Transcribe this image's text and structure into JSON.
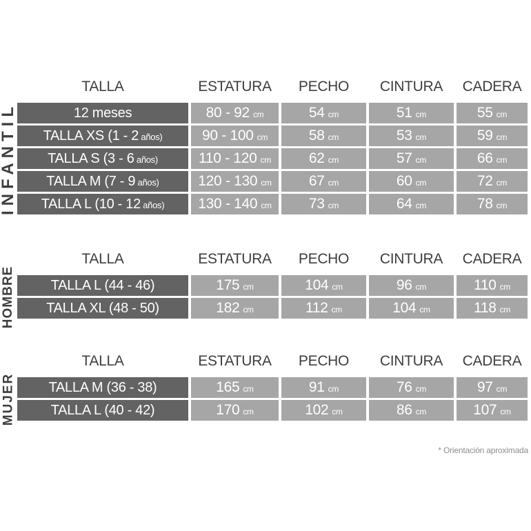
{
  "columns": {
    "talla": "TALLA",
    "estatura": "ESTATURA",
    "pecho": "PECHO",
    "cintura": "CINTURA",
    "cadera": "CADERA"
  },
  "footnote": "* Orientación aproximada",
  "colors": {
    "row_header_cell": "#636363",
    "data_cell": "#a6a6a6",
    "header_text": "#3e3e3e",
    "cell_text": "#ffffff",
    "footnote_text": "#8e8e8e",
    "background": "#ffffff"
  },
  "sections": [
    {
      "label": "INFANTIL",
      "rows": [
        {
          "talla": {
            "text": "12 meses",
            "small": ""
          },
          "estatura": {
            "value": "80 - 92",
            "unit": "cm"
          },
          "pecho": {
            "value": "54",
            "unit": "cm"
          },
          "cintura": {
            "value": "51",
            "unit": "cm"
          },
          "cadera": {
            "value": "55",
            "unit": "cm"
          }
        },
        {
          "talla": {
            "text": "TALLA XS (1 - 2",
            "small": " años)"
          },
          "estatura": {
            "value": "90 - 100",
            "unit": "cm"
          },
          "pecho": {
            "value": "58",
            "unit": "cm"
          },
          "cintura": {
            "value": "53",
            "unit": "cm"
          },
          "cadera": {
            "value": "59",
            "unit": "cm"
          }
        },
        {
          "talla": {
            "text": "TALLA S (3 - 6",
            "small": " años)"
          },
          "estatura": {
            "value": "110 - 120",
            "unit": "cm"
          },
          "pecho": {
            "value": "62",
            "unit": "cm"
          },
          "cintura": {
            "value": "57",
            "unit": "cm"
          },
          "cadera": {
            "value": "66",
            "unit": "cm"
          }
        },
        {
          "talla": {
            "text": "TALLA M (7 - 9",
            "small": " años)"
          },
          "estatura": {
            "value": "120 - 130",
            "unit": "cm"
          },
          "pecho": {
            "value": "67",
            "unit": "cm"
          },
          "cintura": {
            "value": "60",
            "unit": "cm"
          },
          "cadera": {
            "value": "72",
            "unit": "cm"
          }
        },
        {
          "talla": {
            "text": "TALLA L (10 - 12",
            "small": " años)"
          },
          "estatura": {
            "value": "130 - 140",
            "unit": "cm"
          },
          "pecho": {
            "value": "73",
            "unit": "cm"
          },
          "cintura": {
            "value": "64",
            "unit": "cm"
          },
          "cadera": {
            "value": "78",
            "unit": "cm"
          }
        }
      ]
    },
    {
      "label": "HOMBRE",
      "rows": [
        {
          "talla": {
            "text": "TALLA L (44 - 46)",
            "small": ""
          },
          "estatura": {
            "value": "175",
            "unit": "cm"
          },
          "pecho": {
            "value": "104",
            "unit": "cm"
          },
          "cintura": {
            "value": "96",
            "unit": "cm"
          },
          "cadera": {
            "value": "110",
            "unit": "cm"
          }
        },
        {
          "talla": {
            "text": "TALLA XL (48 - 50)",
            "small": ""
          },
          "estatura": {
            "value": "182",
            "unit": "cm"
          },
          "pecho": {
            "value": "112",
            "unit": "cm"
          },
          "cintura": {
            "value": "104",
            "unit": "cm"
          },
          "cadera": {
            "value": "118",
            "unit": "cm"
          }
        }
      ]
    },
    {
      "label": "MUJER",
      "rows": [
        {
          "talla": {
            "text": "TALLA M (36 - 38)",
            "small": ""
          },
          "estatura": {
            "value": "165",
            "unit": "cm"
          },
          "pecho": {
            "value": "91",
            "unit": "cm"
          },
          "cintura": {
            "value": "76",
            "unit": "cm"
          },
          "cadera": {
            "value": "97",
            "unit": "cm"
          }
        },
        {
          "talla": {
            "text": "TALLA L (40 - 42)",
            "small": ""
          },
          "estatura": {
            "value": "170",
            "unit": "cm"
          },
          "pecho": {
            "value": "102",
            "unit": "cm"
          },
          "cintura": {
            "value": "86",
            "unit": "cm"
          },
          "cadera": {
            "value": "107",
            "unit": "cm"
          }
        }
      ]
    }
  ]
}
